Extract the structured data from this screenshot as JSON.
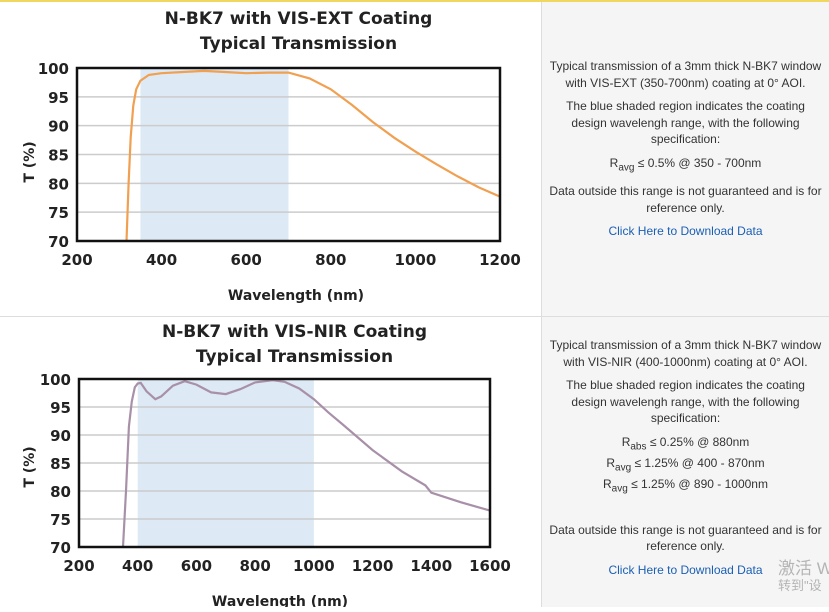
{
  "charts_meta": [
    {
      "desc1": "Typical transmission of a 3mm thick N-BK7 window with VIS-EXT (350-700nm) coating at 0° AOI.",
      "desc2": "The blue shaded region indicates the coating design wavelengh range, with the following specification:",
      "specs": [
        {
          "r": "R",
          "sub": "avg",
          "text": " ≤ 0.5% @ 350 - 700nm"
        }
      ],
      "desc3": "Data outside this range is not guaranteed and is for reference only.",
      "link": "Click Here to Download Data"
    },
    {
      "desc1": "Typical transmission of a 3mm thick N-BK7 window with VIS-NIR (400-1000nm) coating at 0° AOI.",
      "desc2": "The blue shaded region indicates the coating design wavelengh range, with the following specification:",
      "specs": [
        {
          "r": "R",
          "sub": "abs",
          "text": " ≤ 0.25% @ 880nm"
        },
        {
          "r": "R",
          "sub": "avg",
          "text": " ≤ 1.25% @ 400 - 870nm"
        },
        {
          "r": "R",
          "sub": "avg",
          "text": " ≤ 1.25% @ 890 - 1000nm"
        }
      ],
      "desc3": "Data outside this range is not guaranteed and is for reference only.",
      "link": "Click Here to Download Data"
    }
  ],
  "watermark": [
    "激活 W",
    "转到\"设"
  ],
  "chart_data": [
    {
      "type": "line",
      "title": [
        "N-BK7 with VIS-EXT Coating",
        "Typical Transmission"
      ],
      "xlabel": "Wavelength (nm)",
      "ylabel": "T (%)",
      "xlim": [
        200,
        1200
      ],
      "ylim": [
        70,
        100
      ],
      "xticks": [
        200,
        400,
        600,
        800,
        1000,
        1200
      ],
      "yticks": [
        70,
        75,
        80,
        85,
        90,
        95,
        100
      ],
      "grid": true,
      "shaded_range": [
        350,
        700
      ],
      "shade_color": "#dde9f5",
      "line_color": "#f0a050",
      "x": [
        317,
        322,
        327,
        333,
        340,
        350,
        370,
        400,
        450,
        500,
        550,
        600,
        650,
        700,
        750,
        800,
        850,
        900,
        950,
        1000,
        1050,
        1100,
        1150,
        1200
      ],
      "y": [
        70,
        80,
        88,
        93.5,
        96.3,
        97.8,
        98.8,
        99.1,
        99.3,
        99.5,
        99.3,
        99.1,
        99.2,
        99.2,
        98.2,
        96.3,
        93.6,
        90.6,
        87.9,
        85.5,
        83.3,
        81.2,
        79.3,
        77.7
      ]
    },
    {
      "type": "line",
      "title": [
        "N-BK7 with VIS-NIR Coating",
        "Typical Transmission"
      ],
      "xlabel": "Wavelength (nm)",
      "ylabel": "T (%)",
      "xlim": [
        200,
        1600
      ],
      "ylim": [
        70,
        100
      ],
      "xticks": [
        200,
        400,
        600,
        800,
        1000,
        1200,
        1400,
        1600
      ],
      "yticks": [
        70,
        75,
        80,
        85,
        90,
        95,
        100
      ],
      "grid": true,
      "shaded_range": [
        400,
        1000
      ],
      "shade_color": "#dde9f5",
      "line_color": "#a890a8",
      "x": [
        350,
        360,
        370,
        380,
        390,
        400,
        410,
        430,
        460,
        480,
        520,
        560,
        600,
        650,
        700,
        750,
        800,
        860,
        900,
        950,
        1000,
        1050,
        1100,
        1200,
        1300,
        1380,
        1400,
        1500,
        1600
      ],
      "y": [
        70,
        80,
        91.5,
        96,
        98.5,
        99.2,
        99.3,
        97.8,
        96.4,
        96.9,
        98.8,
        99.6,
        99,
        97.6,
        97.3,
        98.2,
        99.4,
        99.8,
        99.5,
        98.3,
        96.4,
        94,
        91.8,
        87.3,
        83.5,
        81,
        79.7,
        78,
        76.5
      ]
    }
  ]
}
